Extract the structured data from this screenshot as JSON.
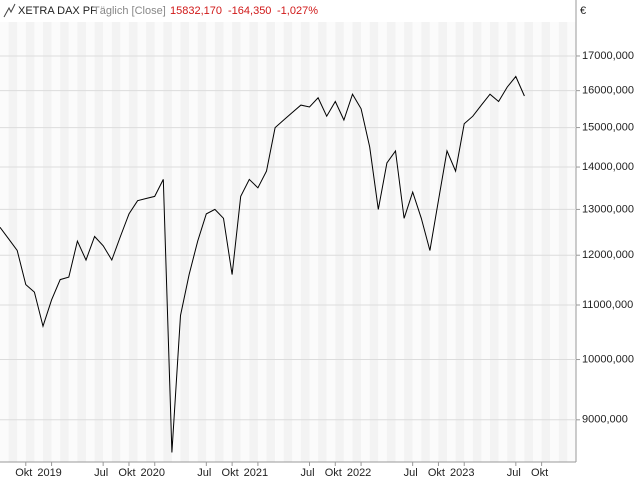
{
  "chart_data": {
    "type": "line",
    "title": "XETRA DAX PF",
    "subtitle": "Täglich [Close]",
    "annotations": [
      "15832,170",
      "-164,350",
      "-1,027%"
    ],
    "y_label": "€",
    "log_scale": true,
    "grid": true,
    "color": "#000000",
    "xlim": [
      "2018-07",
      "2024-02"
    ],
    "xticks": [
      {
        "value": "2018-10",
        "label": "Okt"
      },
      {
        "value": "2019-01",
        "label": "2019"
      },
      {
        "value": "2019-07",
        "label": "Jul"
      },
      {
        "value": "2019-10",
        "label": "Okt"
      },
      {
        "value": "2020-01",
        "label": "2020"
      },
      {
        "value": "2020-07",
        "label": "Jul"
      },
      {
        "value": "2020-10",
        "label": "Okt"
      },
      {
        "value": "2021-01",
        "label": "2021"
      },
      {
        "value": "2021-07",
        "label": "Jul"
      },
      {
        "value": "2021-10",
        "label": "Okt"
      },
      {
        "value": "2022-01",
        "label": "2022"
      },
      {
        "value": "2022-07",
        "label": "Jul"
      },
      {
        "value": "2022-10",
        "label": "Okt"
      },
      {
        "value": "2023-01",
        "label": "2023"
      },
      {
        "value": "2023-07",
        "label": "Jul"
      },
      {
        "value": "2023-10",
        "label": "Okt"
      }
    ],
    "ylim": [
      8360,
      18040
    ],
    "yticks": [
      {
        "value": 9000,
        "label": "9000,000"
      },
      {
        "value": 10000,
        "label": "10000,000"
      },
      {
        "value": 11000,
        "label": "11000,000"
      },
      {
        "value": 12000,
        "label": "12000,000"
      },
      {
        "value": 13000,
        "label": "13000,000"
      },
      {
        "value": 14000,
        "label": "14000,000"
      },
      {
        "value": 15000,
        "label": "15000,000"
      },
      {
        "value": 16000,
        "label": "16000,000"
      },
      {
        "value": 17000,
        "label": "17000,000"
      }
    ],
    "x": [
      "2018-07",
      "2018-08",
      "2018-09",
      "2018-10",
      "2018-11",
      "2018-12",
      "2019-01",
      "2019-02",
      "2019-03",
      "2019-04",
      "2019-05",
      "2019-06",
      "2019-07",
      "2019-08",
      "2019-09",
      "2019-10",
      "2019-11",
      "2019-12",
      "2020-01",
      "2020-02",
      "2020-03",
      "2020-04",
      "2020-05",
      "2020-06",
      "2020-07",
      "2020-08",
      "2020-09",
      "2020-10",
      "2020-11",
      "2020-12",
      "2021-01",
      "2021-02",
      "2021-03",
      "2021-04",
      "2021-05",
      "2021-06",
      "2021-07",
      "2021-08",
      "2021-09",
      "2021-10",
      "2021-11",
      "2021-12",
      "2022-01",
      "2022-02",
      "2022-03",
      "2022-04",
      "2022-05",
      "2022-06",
      "2022-07",
      "2022-08",
      "2022-09",
      "2022-10",
      "2022-11",
      "2022-12",
      "2023-01",
      "2023-02",
      "2023-03",
      "2023-04",
      "2023-05",
      "2023-06",
      "2023-07",
      "2023-08"
    ],
    "values": [
      12600,
      12350,
      12100,
      11400,
      11250,
      10600,
      11100,
      11500,
      11550,
      12300,
      11900,
      12400,
      12200,
      11900,
      12400,
      12900,
      13200,
      13250,
      13300,
      13700,
      8500,
      10800,
      11600,
      12300,
      12900,
      13000,
      12800,
      11600,
      13300,
      13700,
      13500,
      13900,
      15000,
      15200,
      15400,
      15600,
      15550,
      15800,
      15300,
      15700,
      15200,
      15900,
      15500,
      14500,
      13000,
      14100,
      14400,
      12800,
      13400,
      12800,
      12100,
      13200,
      14400,
      13900,
      15100,
      15300,
      15600,
      15900,
      15700,
      16100,
      16400,
      15850
    ]
  }
}
